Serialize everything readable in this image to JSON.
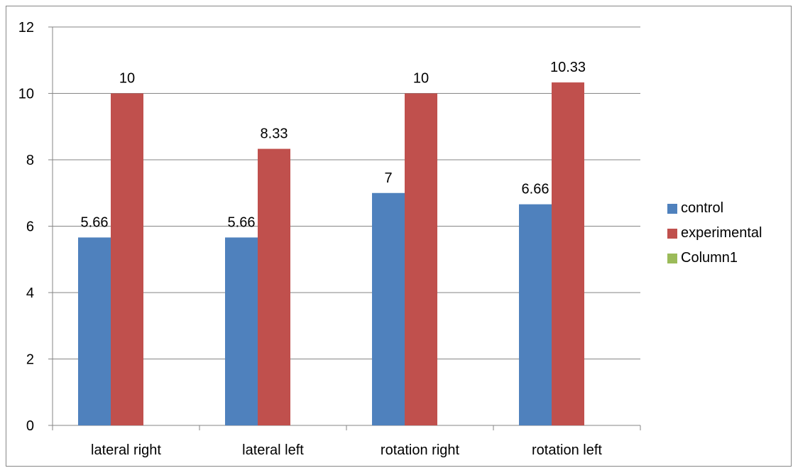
{
  "chart_data": {
    "type": "bar",
    "categories": [
      "lateral right",
      "lateral left",
      "rotation right",
      "rotation left"
    ],
    "series": [
      {
        "name": "control",
        "values": [
          5.66,
          5.66,
          7,
          6.66
        ],
        "labels": [
          "5.66",
          "5.66",
          "7",
          "6.66"
        ],
        "color": "#4F81BD"
      },
      {
        "name": "experimental",
        "values": [
          10,
          8.33,
          10,
          10.33
        ],
        "labels": [
          "10",
          "8.33",
          "10",
          "10.33"
        ],
        "color": "#C0504D"
      },
      {
        "name": "Column1",
        "values": [
          null,
          null,
          null,
          null
        ],
        "labels": [
          "",
          "",
          "",
          ""
        ],
        "color": "#9BBB59"
      }
    ],
    "ylim": [
      0,
      12
    ],
    "yticks": [
      "0",
      "2",
      "4",
      "6",
      "8",
      "10",
      "12"
    ],
    "grid": true,
    "legend_position": "right"
  }
}
